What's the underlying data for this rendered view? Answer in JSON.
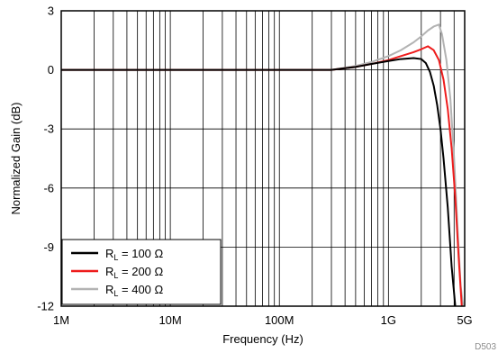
{
  "chart_data": {
    "type": "line",
    "title": "",
    "xlabel": "Frequency (Hz)",
    "ylabel": "Normalized Gain (dB)",
    "x_scale": "log",
    "xlim": [
      1000000,
      5000000000
    ],
    "ylim": [
      -12,
      3
    ],
    "x_tick_values": [
      1000000,
      10000000,
      100000000,
      1000000000,
      5000000000
    ],
    "x_tick_labels": [
      "1M",
      "10M",
      "100M",
      "1G",
      "5G"
    ],
    "y_tick_values": [
      3,
      0,
      -3,
      -6,
      -9,
      -12
    ],
    "y_tick_labels": [
      "3",
      "0",
      "-3",
      "-6",
      "-9",
      "-12"
    ],
    "grid": true,
    "legend_position": "bottom-left",
    "figure_code": "D503",
    "series": [
      {
        "label_main": "R",
        "label_sub": "L",
        "label_rest": " = 100 Ω",
        "color": "#000000",
        "x": [
          1000000,
          10000000,
          100000000,
          300000000,
          500000000,
          700000000,
          1000000000,
          1300000000,
          1700000000,
          2000000000,
          2200000000,
          2400000000,
          2600000000,
          2800000000,
          3000000000,
          3200000000,
          3500000000,
          3800000000,
          4100000000
        ],
        "y": [
          0.0,
          0.0,
          0.0,
          0.0,
          0.15,
          0.3,
          0.45,
          0.55,
          0.6,
          0.55,
          0.35,
          -0.1,
          -0.8,
          -1.8,
          -3.0,
          -4.5,
          -7.0,
          -10.0,
          -12.0
        ]
      },
      {
        "label_main": "R",
        "label_sub": "L",
        "label_rest": " = 200 Ω",
        "color": "#ee1c1c",
        "x": [
          1000000,
          10000000,
          100000000,
          300000000,
          500000000,
          700000000,
          1000000000,
          1300000000,
          1700000000,
          2000000000,
          2300000000,
          2600000000,
          2900000000,
          3200000000,
          3500000000,
          3800000000,
          4100000000,
          4400000000,
          4700000000
        ],
        "y": [
          0.0,
          0.0,
          0.0,
          0.0,
          0.15,
          0.3,
          0.5,
          0.7,
          0.9,
          1.05,
          1.2,
          1.0,
          0.5,
          -0.5,
          -2.0,
          -4.0,
          -6.5,
          -9.5,
          -12.0
        ]
      },
      {
        "label_main": "R",
        "label_sub": "L",
        "label_rest": " = 400 Ω",
        "color": "#b3b3b3",
        "x": [
          1000000,
          10000000,
          100000000,
          300000000,
          500000000,
          700000000,
          1000000000,
          1300000000,
          1700000000,
          2000000000,
          2300000000,
          2600000000,
          2900000000,
          3100000000,
          3400000000,
          3700000000,
          4000000000,
          4300000000,
          4600000000,
          4850000000
        ],
        "y": [
          0.0,
          0.0,
          0.0,
          0.0,
          0.2,
          0.4,
          0.7,
          1.0,
          1.4,
          1.7,
          2.0,
          2.2,
          2.3,
          1.8,
          0.5,
          -1.5,
          -4.5,
          -8.0,
          -11.0,
          -12.0
        ]
      }
    ]
  }
}
